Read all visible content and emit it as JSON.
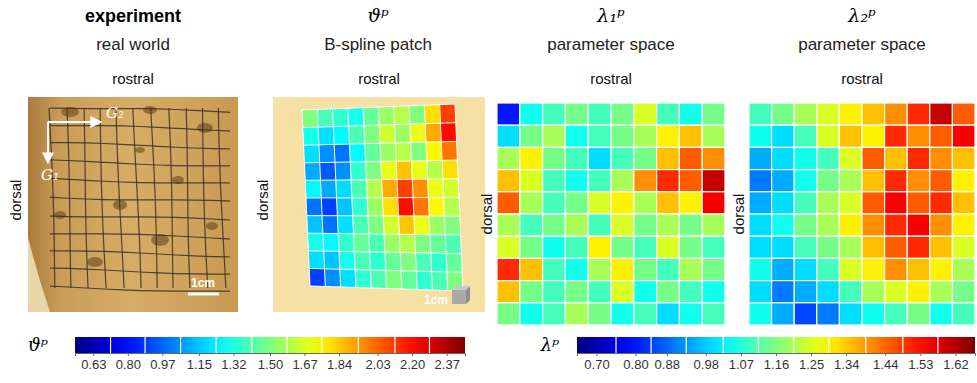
{
  "chart_data": [
    {
      "type": "image",
      "title": "experiment",
      "subtitle": "real world",
      "top_label": "rostral",
      "left_label": "dorsal",
      "annotations": [
        "G₁",
        "G₂",
        "1cm"
      ]
    },
    {
      "type": "heatmap",
      "title": "ϑᵖ",
      "subtitle": "B-spline patch",
      "top_label": "rostral",
      "left_label": "dorsal",
      "annotations": [
        "1cm"
      ],
      "cells": [
        [
          1.5,
          1.4,
          1.35,
          1.3,
          1.45,
          1.55,
          1.6,
          1.5,
          1.8,
          2.1
        ],
        [
          1.3,
          1.2,
          1.25,
          1.4,
          1.5,
          1.65,
          1.55,
          1.7,
          1.9,
          2.2
        ],
        [
          1.2,
          1.05,
          1.0,
          1.25,
          1.45,
          1.55,
          1.6,
          1.5,
          1.75,
          2.0
        ],
        [
          1.1,
          0.95,
          1.05,
          1.35,
          1.5,
          1.7,
          1.85,
          1.7,
          1.6,
          1.8
        ],
        [
          1.25,
          1.1,
          1.2,
          1.4,
          1.6,
          1.9,
          2.1,
          1.95,
          1.7,
          1.65
        ],
        [
          1.0,
          0.9,
          1.15,
          1.35,
          1.55,
          1.8,
          2.2,
          2.0,
          1.75,
          1.6
        ],
        [
          1.15,
          1.0,
          1.2,
          1.4,
          1.5,
          1.65,
          1.85,
          1.7,
          1.55,
          1.5
        ],
        [
          1.3,
          1.25,
          1.35,
          1.45,
          1.4,
          1.55,
          1.6,
          1.5,
          1.45,
          1.4
        ],
        [
          1.2,
          1.15,
          1.3,
          1.4,
          1.35,
          1.45,
          1.5,
          1.4,
          1.35,
          1.45
        ],
        [
          0.9,
          1.05,
          1.2,
          1.35,
          1.4,
          1.5,
          1.45,
          1.35,
          1.4,
          1.5
        ]
      ],
      "colorbar": {
        "label": "ϑᵖ",
        "range": [
          0.54,
          2.46
        ],
        "ticks": [
          0.63,
          {
            "value": 0.8,
            "label": "0.80"
          },
          0.97,
          1.15,
          1.32,
          {
            "value": 1.5,
            "label": "1.50"
          },
          1.67,
          1.84,
          2.03,
          {
            "value": 2.2,
            "label": "2.20"
          },
          2.37
        ]
      }
    },
    {
      "type": "heatmap",
      "title": "λ₁ᵖ",
      "subtitle": "parameter space",
      "top_label": "rostral",
      "left_label": "dorsal",
      "cells": [
        [
          0.8,
          1.05,
          1.1,
          1.15,
          1.1,
          1.15,
          1.25,
          1.1,
          1.05,
          1.15
        ],
        [
          1.0,
          1.15,
          1.2,
          1.05,
          1.1,
          1.15,
          1.2,
          1.3,
          1.35,
          1.2
        ],
        [
          1.2,
          1.3,
          1.15,
          1.1,
          1.0,
          1.1,
          1.15,
          1.35,
          1.45,
          1.4
        ],
        [
          1.35,
          1.25,
          1.1,
          1.05,
          1.1,
          1.2,
          1.4,
          1.5,
          1.45,
          1.6
        ],
        [
          1.45,
          1.2,
          1.1,
          1.15,
          1.25,
          1.3,
          1.2,
          1.35,
          1.3,
          1.55
        ],
        [
          1.2,
          1.1,
          1.15,
          1.2,
          1.1,
          1.25,
          1.15,
          1.2,
          1.15,
          1.2
        ],
        [
          1.25,
          1.15,
          1.05,
          1.1,
          1.3,
          1.15,
          1.1,
          1.25,
          1.15,
          1.1
        ],
        [
          1.5,
          1.35,
          1.1,
          1.05,
          1.2,
          1.3,
          1.15,
          1.1,
          1.2,
          1.15
        ],
        [
          1.35,
          1.15,
          1.1,
          1.15,
          1.1,
          1.25,
          1.05,
          1.15,
          1.1,
          1.05
        ],
        [
          1.15,
          1.05,
          1.1,
          1.2,
          1.15,
          1.05,
          1.1,
          1.0,
          1.05,
          1.1
        ]
      ],
      "colorbar": {
        "label": "λᵖ",
        "range": [
          0.65,
          1.67
        ],
        "ticks": [
          {
            "value": 0.7,
            "label": "0.70"
          },
          {
            "value": 0.8,
            "label": "0.80"
          },
          0.88,
          0.98,
          1.07,
          1.16,
          1.25,
          1.34,
          1.44,
          1.53,
          1.62
        ]
      }
    },
    {
      "type": "heatmap",
      "title": "λ₂ᵖ",
      "subtitle": "parameter space",
      "top_label": "rostral",
      "left_label": "dorsal",
      "cells": [
        [
          1.1,
          1.15,
          1.2,
          1.25,
          1.3,
          1.35,
          1.4,
          1.5,
          1.6,
          1.45
        ],
        [
          1.05,
          1.0,
          1.1,
          1.25,
          1.35,
          1.3,
          1.5,
          1.4,
          1.45,
          1.55
        ],
        [
          0.95,
          1.0,
          1.05,
          1.1,
          1.25,
          1.45,
          1.35,
          1.5,
          1.4,
          1.35
        ],
        [
          0.9,
          0.95,
          1.05,
          1.15,
          1.2,
          1.35,
          1.5,
          1.4,
          1.45,
          1.3
        ],
        [
          0.95,
          1.0,
          1.1,
          1.2,
          1.25,
          1.45,
          1.55,
          1.45,
          1.5,
          1.35
        ],
        [
          1.0,
          1.05,
          1.15,
          1.2,
          1.3,
          1.4,
          1.5,
          1.55,
          1.4,
          1.3
        ],
        [
          1.0,
          1.0,
          1.1,
          1.15,
          1.2,
          1.35,
          1.45,
          1.5,
          1.35,
          1.25
        ],
        [
          1.05,
          0.95,
          1.0,
          1.1,
          1.25,
          1.3,
          1.4,
          1.35,
          1.3,
          1.2
        ],
        [
          1.0,
          0.9,
          0.95,
          1.0,
          1.1,
          1.2,
          1.25,
          1.3,
          1.2,
          1.15
        ],
        [
          1.05,
          0.95,
          0.85,
          0.9,
          1.0,
          1.05,
          1.1,
          1.15,
          1.05,
          1.1
        ]
      ]
    }
  ]
}
